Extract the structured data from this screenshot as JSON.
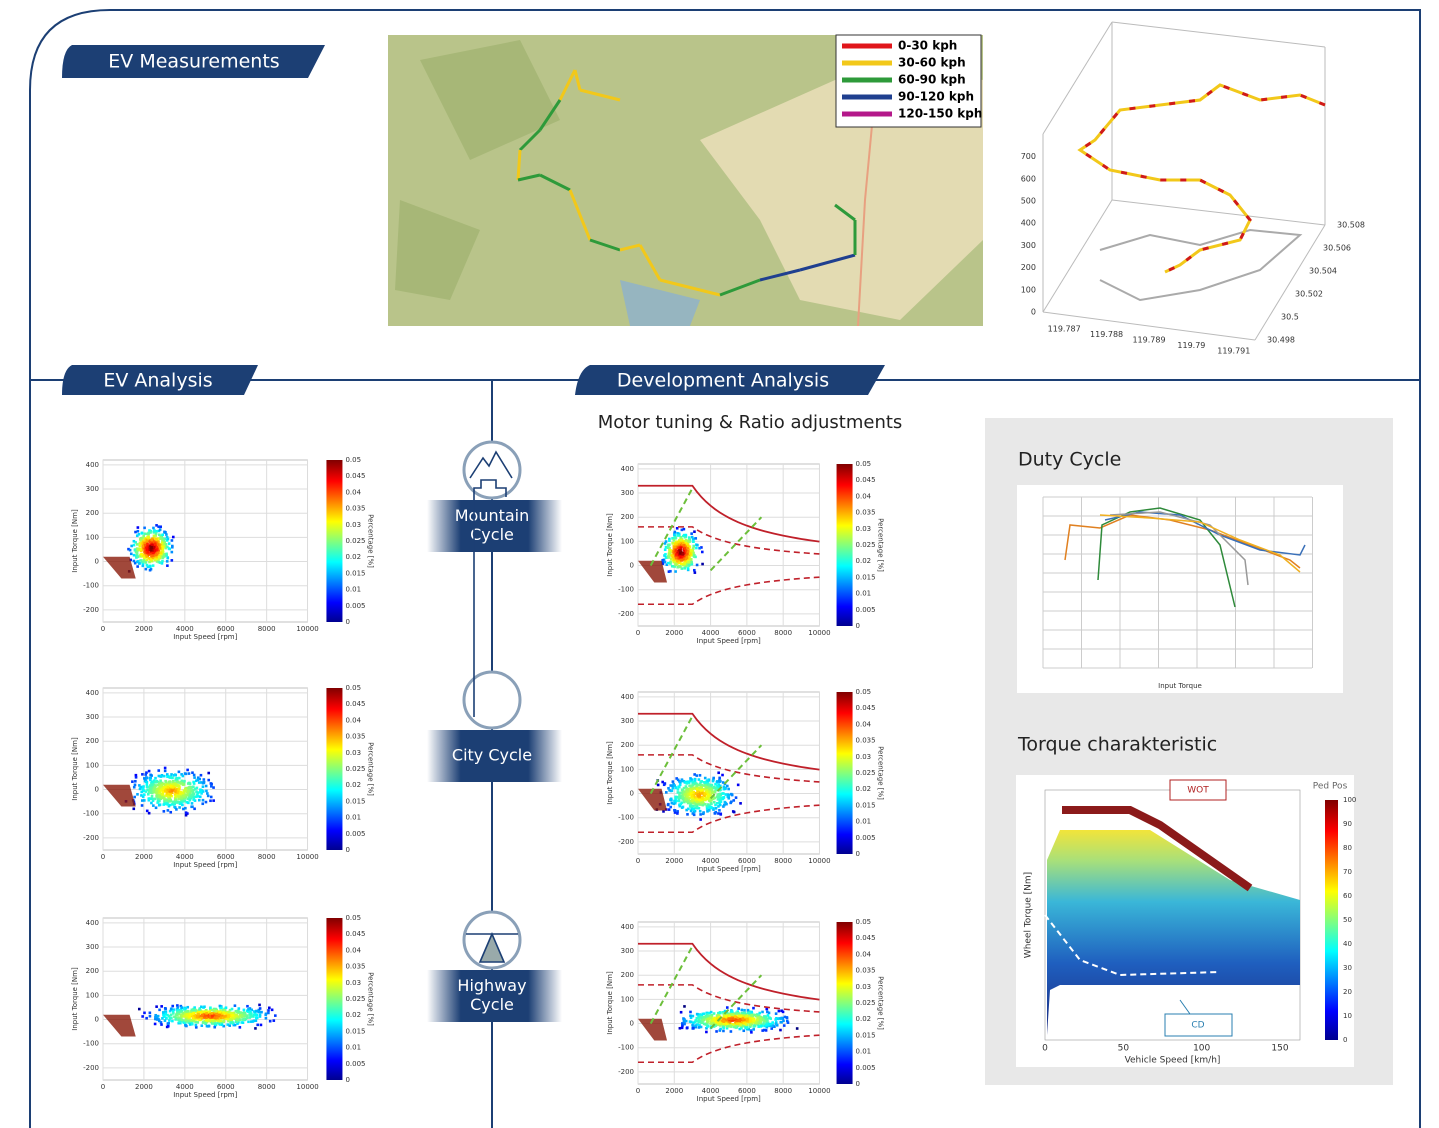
{
  "sections": {
    "measurements": "EV Measurements",
    "analysis": "EV Analysis",
    "development": "Development Analysis"
  },
  "subtitle": "Motor tuning & Ratio adjustments",
  "map": {
    "legend": [
      "0-30 kph",
      "30-60 kph",
      "60-90 kph",
      "90-120 kph",
      "120-150 kph"
    ],
    "colors": [
      "#e0161b",
      "#f2c81a",
      "#2e9a3a",
      "#1f3f8f",
      "#b4188a"
    ]
  },
  "plot3d": {
    "zticks": [
      "0",
      "100",
      "200",
      "300",
      "400",
      "500",
      "600",
      "700"
    ],
    "xticks": [
      "119.787",
      "119.788",
      "119.789",
      "119.79",
      "119.791"
    ],
    "yticks": [
      "30.498",
      "30.5",
      "30.502",
      "30.504",
      "30.506",
      "30.508"
    ]
  },
  "heatmap": {
    "ylabel": "Input Torque [Nm]",
    "xlabel": "Input Speed [rpm]",
    "yticks": [
      "400",
      "300",
      "200",
      "100",
      "0",
      "-100",
      "-200"
    ],
    "xticks": [
      "0",
      "2000",
      "4000",
      "6000",
      "8000",
      "10000"
    ],
    "cbar_label": "Percentage [%]",
    "cbar_ticks": [
      "0.05",
      "0.045",
      "0.04",
      "0.035",
      "0.03",
      "0.025",
      "0.02",
      "0.015",
      "0.01",
      "0.005",
      "0"
    ]
  },
  "cycles": [
    [
      "Mountain",
      "Cycle"
    ],
    [
      "City Cycle"
    ],
    [
      "Highway",
      "Cycle"
    ]
  ],
  "duty": {
    "title": "Duty Cycle",
    "xlabel": "Input Torque"
  },
  "torque": {
    "title": "Torque charakteristic",
    "ylabel": "Wheel Torque [Nm]",
    "xlabel": "Vehicle Speed [km/h]",
    "xticks": [
      "0",
      "50",
      "100",
      "150"
    ],
    "cbar_title": "Ped Pos",
    "cbar_ticks": [
      "100",
      "90",
      "80",
      "70",
      "60",
      "50",
      "40",
      "30",
      "20",
      "10",
      "0"
    ],
    "wot": "WOT",
    "cd": "CD"
  }
}
